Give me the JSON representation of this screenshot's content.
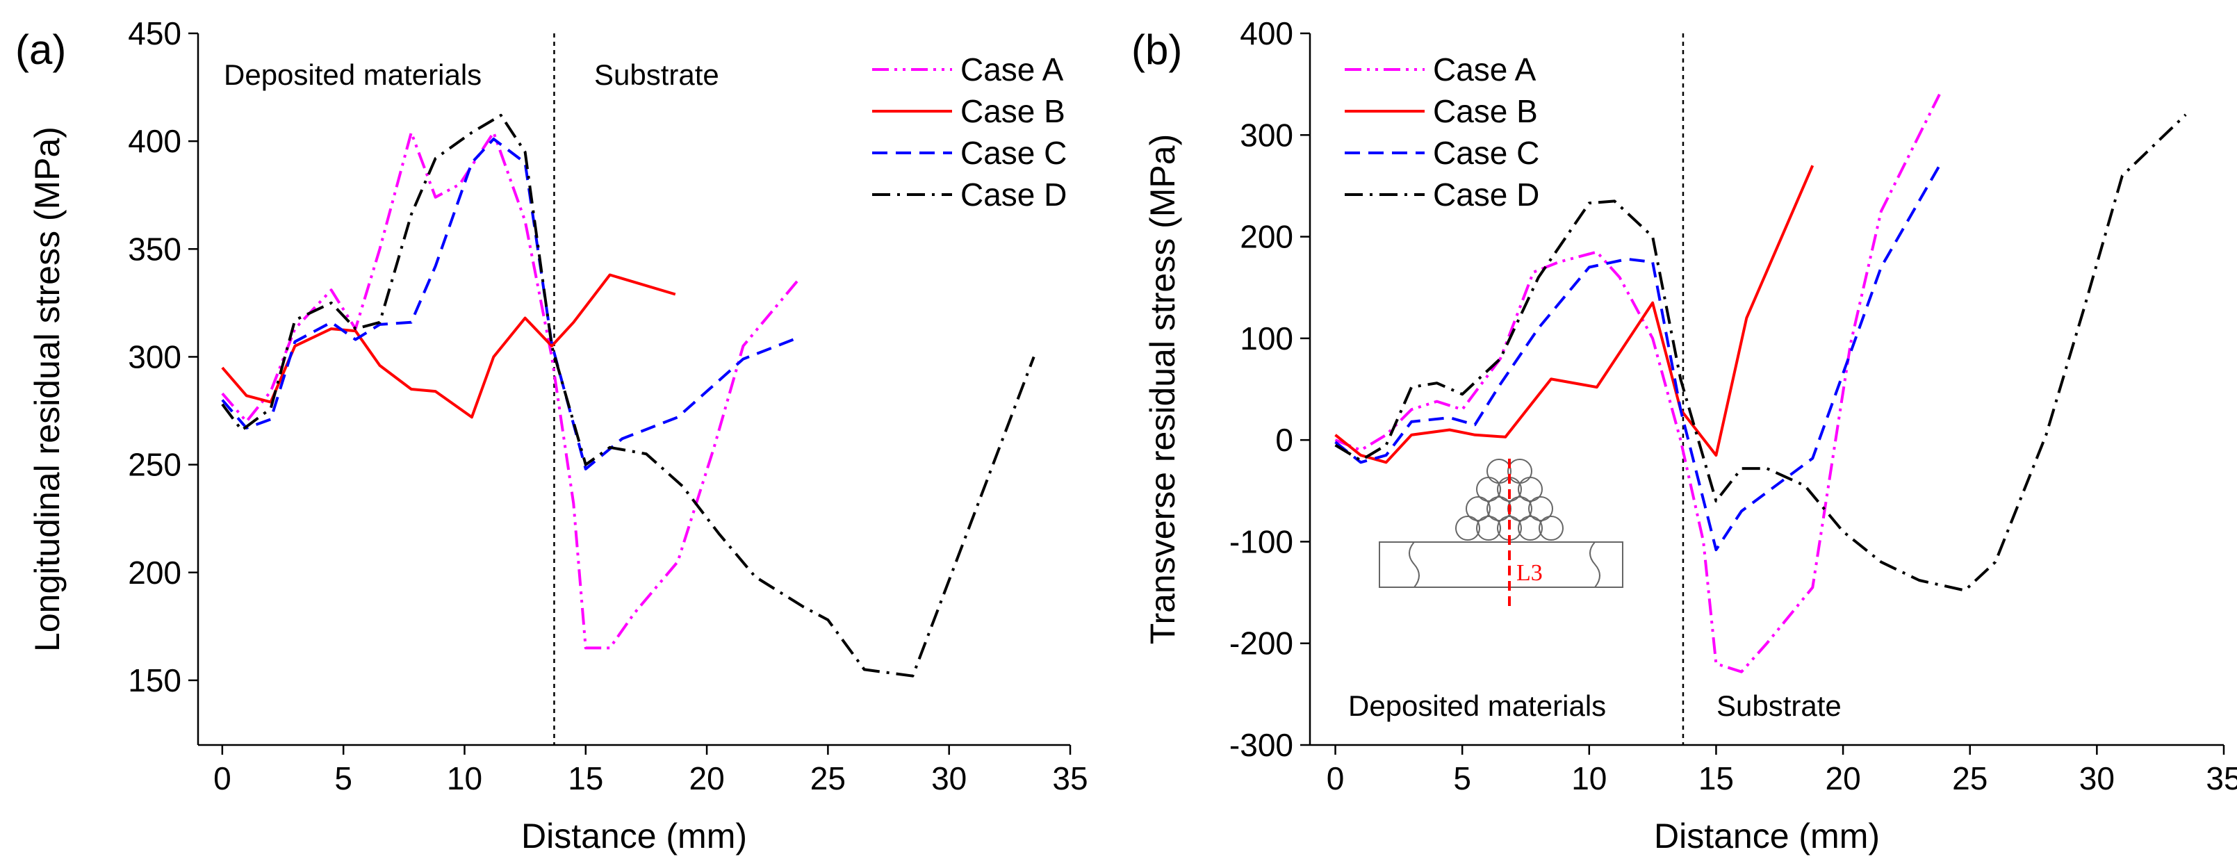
{
  "chart_data": [
    {
      "type": "line",
      "panel_label": "(a)",
      "xlabel": "Distance (mm)",
      "ylabel": "Longitudinal residual stress (MPa)",
      "xlim": [
        -1,
        35
      ],
      "ylim": [
        120,
        450
      ],
      "xticks": [
        0,
        5,
        10,
        15,
        20,
        25,
        30,
        35
      ],
      "yticks": [
        150,
        200,
        250,
        300,
        350,
        400,
        450
      ],
      "divider_x": 13.7,
      "region_labels": {
        "left": "Deposited materials",
        "right": "Substrate"
      },
      "legend_position": "top-right",
      "series": [
        {
          "name": "Case A",
          "color": "#ff00ff",
          "style": "dashdotdot",
          "x": [
            0,
            1,
            2,
            3,
            4.5,
            5.5,
            6.5,
            7.8,
            8.8,
            9.8,
            11.2,
            12.5,
            13.6,
            14.5,
            15,
            16,
            17,
            18.8,
            20.3,
            21.5,
            23.8
          ],
          "y": [
            283,
            270,
            284,
            313,
            331,
            313,
            350,
            404,
            374,
            380,
            404,
            363,
            300,
            232,
            165,
            165,
            181,
            205,
            258,
            305,
            336
          ]
        },
        {
          "name": "Case B",
          "color": "#ff0000",
          "style": "solid",
          "x": [
            0,
            1,
            2,
            3,
            4.5,
            5.5,
            6.5,
            7.8,
            8.8,
            10.3,
            11.2,
            12.5,
            13.6,
            14.5,
            16,
            18.7
          ],
          "y": [
            295,
            282,
            279,
            305,
            313,
            312,
            296,
            285,
            284,
            272,
            300,
            318,
            305,
            316,
            338,
            329
          ]
        },
        {
          "name": "Case C",
          "color": "#0000ff",
          "style": "dashed",
          "x": [
            0,
            1,
            2,
            3,
            4.5,
            5.5,
            6.5,
            7.8,
            8.8,
            10.3,
            11.2,
            12.5,
            13.6,
            15,
            16.5,
            18.8,
            21.5,
            23.8
          ],
          "y": [
            280,
            267,
            271,
            307,
            316,
            308,
            315,
            316,
            342,
            390,
            401,
            390,
            306,
            248,
            262,
            272,
            299,
            309
          ]
        },
        {
          "name": "Case D",
          "color": "#000000",
          "style": "dashdot",
          "x": [
            0,
            0.8,
            2,
            3,
            4.5,
            5.5,
            6.5,
            7.8,
            8.8,
            10.3,
            11.5,
            12.5,
            13.6,
            15,
            16,
            17.5,
            19,
            20.5,
            22,
            24,
            25,
            26.5,
            28.5,
            33.5
          ],
          "y": [
            278,
            266,
            276,
            317,
            325,
            313,
            316,
            366,
            392,
            404,
            412,
            395,
            305,
            250,
            258,
            255,
            240,
            218,
            198,
            184,
            178,
            155,
            152,
            300
          ]
        }
      ]
    },
    {
      "type": "line",
      "panel_label": "(b)",
      "xlabel": "Distance (mm)",
      "ylabel": "Transverse residual stress (MPa)",
      "xlim": [
        -1,
        35
      ],
      "ylim": [
        -300,
        400
      ],
      "xticks": [
        0,
        5,
        10,
        15,
        20,
        25,
        30,
        35
      ],
      "yticks": [
        -300,
        -200,
        -100,
        0,
        100,
        200,
        300,
        400
      ],
      "divider_x": 13.7,
      "region_labels": {
        "left": "Deposited materials",
        "right": "Substrate"
      },
      "legend_position": "top-left",
      "inset_label": "L3",
      "series": [
        {
          "name": "Case A",
          "color": "#ff00ff",
          "style": "dashdotdot",
          "x": [
            0,
            1,
            2,
            3,
            4,
            5,
            6.5,
            7.8,
            8.8,
            10.3,
            11.2,
            12.5,
            13.6,
            14.5,
            15,
            16,
            17,
            18.8,
            20.3,
            21.5,
            23.8
          ],
          "y": [
            0,
            -10,
            5,
            30,
            38,
            30,
            80,
            165,
            175,
            185,
            160,
            100,
            0,
            -100,
            -220,
            -228,
            -200,
            -145,
            95,
            225,
            340
          ]
        },
        {
          "name": "Case B",
          "color": "#ff0000",
          "style": "solid",
          "x": [
            0,
            1,
            2,
            3,
            4.5,
            5.5,
            6.7,
            8.5,
            10.3,
            12.5,
            13.6,
            15,
            16.2,
            18.8
          ],
          "y": [
            5,
            -15,
            -22,
            5,
            10,
            5,
            3,
            60,
            52,
            135,
            30,
            -15,
            120,
            270
          ]
        },
        {
          "name": "Case C",
          "color": "#0000ff",
          "style": "dashed",
          "x": [
            0,
            1,
            2,
            3,
            4.5,
            5.5,
            6.5,
            8,
            10,
            11.5,
            12.5,
            13.6,
            15,
            16,
            18.8,
            21.5,
            23.8
          ],
          "y": [
            -2,
            -22,
            -15,
            18,
            22,
            15,
            55,
            110,
            170,
            178,
            175,
            30,
            -108,
            -70,
            -18,
            170,
            270
          ]
        },
        {
          "name": "Case D",
          "color": "#000000",
          "style": "dashdot",
          "x": [
            0,
            1,
            2,
            3,
            4,
            5,
            6.5,
            8,
            10,
            11,
            12.5,
            13.6,
            15,
            16,
            17,
            18.5,
            20,
            21.5,
            23,
            24.8,
            26,
            28,
            29.5,
            31,
            33.5
          ],
          "y": [
            -5,
            -20,
            -5,
            52,
            56,
            45,
            80,
            160,
            233,
            235,
            200,
            60,
            -60,
            -28,
            -28,
            -45,
            -90,
            -120,
            -138,
            -148,
            -120,
            5,
            130,
            260,
            320
          ]
        }
      ]
    }
  ]
}
